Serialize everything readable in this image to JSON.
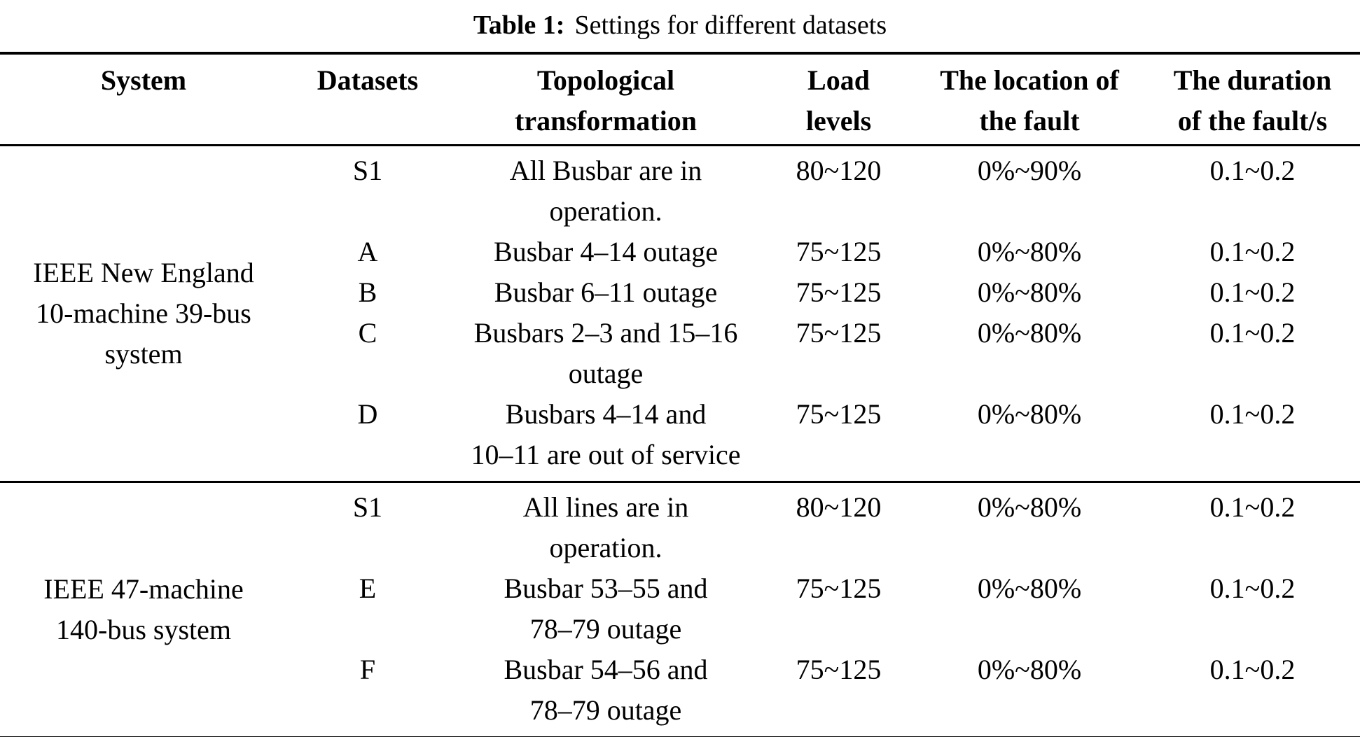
{
  "caption": {
    "label": "Table 1:",
    "text": "Settings for different datasets"
  },
  "table": {
    "headers": [
      {
        "label": "System"
      },
      {
        "label": "Datasets"
      },
      {
        "label": "Topological\ntransformation"
      },
      {
        "label": "Load\nlevels"
      },
      {
        "label": "The location of\nthe fault"
      },
      {
        "label": "The duration\nof the fault/s"
      }
    ],
    "sections": [
      {
        "system": "IEEE New England\n10-machine 39-bus\nsystem",
        "rows": [
          {
            "dataset": "S1",
            "topology": "All Busbar are in\noperation.",
            "load": "80~120",
            "location": "0%~90%",
            "duration": "0.1~0.2"
          },
          {
            "dataset": "A",
            "topology": "Busbar 4–14 outage",
            "load": "75~125",
            "location": "0%~80%",
            "duration": "0.1~0.2"
          },
          {
            "dataset": "B",
            "topology": "Busbar 6–11 outage",
            "load": "75~125",
            "location": "0%~80%",
            "duration": "0.1~0.2"
          },
          {
            "dataset": "C",
            "topology": "Busbars 2–3 and 15–16\noutage",
            "load": "75~125",
            "location": "0%~80%",
            "duration": "0.1~0.2"
          },
          {
            "dataset": "D",
            "topology": "Busbars 4–14 and\n10–11 are out of service",
            "load": "75~125",
            "location": "0%~80%",
            "duration": "0.1~0.2"
          }
        ]
      },
      {
        "system": "IEEE 47-machine\n140-bus system",
        "rows": [
          {
            "dataset": "S1",
            "topology": "All lines are in\noperation.",
            "load": "80~120",
            "location": "0%~80%",
            "duration": "0.1~0.2"
          },
          {
            "dataset": "E",
            "topology": "Busbar 53–55 and\n78–79 outage",
            "load": "75~125",
            "location": "0%~80%",
            "duration": "0.1~0.2"
          },
          {
            "dataset": "F",
            "topology": "Busbar 54–56 and\n78–79 outage",
            "load": "75~125",
            "location": "0%~80%",
            "duration": "0.1~0.2"
          }
        ]
      }
    ]
  }
}
